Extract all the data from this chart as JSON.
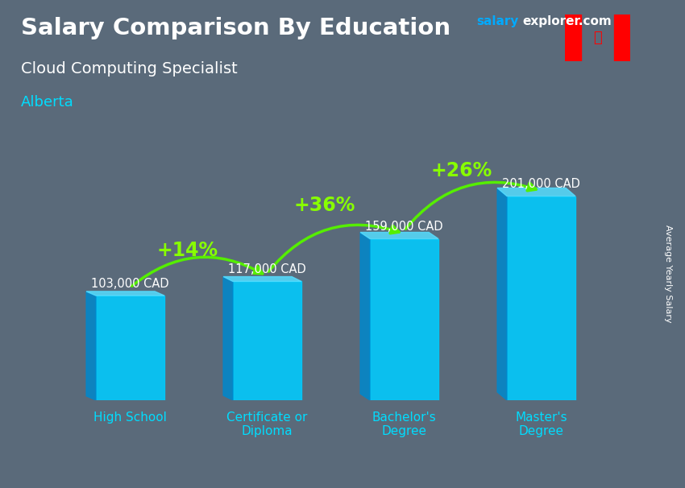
{
  "title": "Salary Comparison By Education",
  "subtitle": "Cloud Computing Specialist",
  "location": "Alberta",
  "ylabel": "Average Yearly Salary",
  "categories": [
    "High School",
    "Certificate or\nDiploma",
    "Bachelor's\nDegree",
    "Master's\nDegree"
  ],
  "values": [
    103000,
    117000,
    159000,
    201000
  ],
  "value_labels": [
    "103,000 CAD",
    "117,000 CAD",
    "159,000 CAD",
    "201,000 CAD"
  ],
  "pct_changes": [
    "+14%",
    "+36%",
    "+26%"
  ],
  "bar_color": "#00CCFF",
  "bar_dark_color": "#0088CC",
  "bar_top_color": "#55DDFF",
  "arrow_color": "#55EE00",
  "title_color": "#FFFFFF",
  "subtitle_color": "#FFFFFF",
  "location_color": "#00DDFF",
  "watermark_salary_color": "#00AAFF",
  "watermark_explorer_color": "#FFFFFF",
  "value_label_color": "#FFFFFF",
  "pct_label_color": "#88FF00",
  "xlabel_color": "#00DDFF",
  "ylabel_color": "#FFFFFF",
  "bg_color": "#5a6a7a",
  "ylim": [
    0,
    250000
  ],
  "figsize": [
    8.5,
    6.06
  ],
  "dpi": 100
}
